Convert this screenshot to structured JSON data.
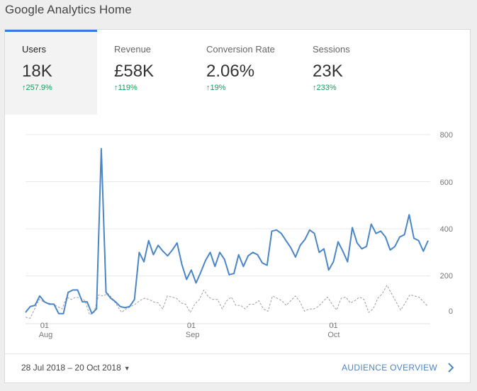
{
  "page": {
    "title": "Google Analytics Home"
  },
  "metrics": [
    {
      "label": "Users",
      "value": "18K",
      "delta": "257.9%",
      "arrow": "↑",
      "active": true
    },
    {
      "label": "Revenue",
      "value": "£58K",
      "delta": "119%",
      "arrow": "↑",
      "active": false
    },
    {
      "label": "Conversion Rate",
      "value": "2.06%",
      "delta": "19%",
      "arrow": "↑",
      "active": false
    },
    {
      "label": "Sessions",
      "value": "23K",
      "delta": "233%",
      "arrow": "↑",
      "active": false
    }
  ],
  "chart_data": {
    "type": "line",
    "title": "",
    "xlabel": "",
    "ylabel": "",
    "ylim": [
      0,
      800
    ],
    "y_ticks": [
      "0",
      "200",
      "400",
      "600",
      "800"
    ],
    "x_ticks": [
      {
        "day": "01",
        "month": "Aug",
        "index": 4
      },
      {
        "day": "01",
        "month": "Sep",
        "index": 35
      },
      {
        "day": "01",
        "month": "Oct",
        "index": 65
      }
    ],
    "grid": true,
    "colors": {
      "current": "#4a86c7",
      "previous": "#9e9e9e"
    },
    "series": [
      {
        "style": "solid",
        "values": [
          45,
          70,
          75,
          115,
          90,
          80,
          80,
          40,
          40,
          130,
          140,
          140,
          90,
          90,
          40,
          60,
          740,
          130,
          105,
          90,
          70,
          65,
          70,
          100,
          300,
          260,
          350,
          290,
          330,
          305,
          285,
          310,
          340,
          250,
          185,
          225,
          170,
          215,
          265,
          300,
          240,
          300,
          270,
          205,
          210,
          290,
          240,
          285,
          300,
          290,
          255,
          245,
          390,
          395,
          380,
          350,
          320,
          280,
          330,
          355,
          395,
          380,
          300,
          315,
          225,
          260,
          345,
          305,
          260,
          405,
          340,
          315,
          325,
          420,
          380,
          390,
          365,
          310,
          325,
          365,
          375,
          460,
          360,
          350,
          305,
          350
        ]
      },
      {
        "style": "dashed",
        "values": [
          25,
          20,
          60,
          100,
          90,
          85,
          80,
          70,
          60,
          110,
          100,
          110,
          105,
          95,
          35,
          45,
          120,
          115,
          125,
          105,
          75,
          45,
          60,
          70,
          80,
          95,
          105,
          100,
          90,
          85,
          60,
          115,
          110,
          105,
          85,
          80,
          45,
          80,
          100,
          140,
          110,
          100,
          100,
          60,
          95,
          110,
          75,
          75,
          60,
          80,
          80,
          95,
          60,
          50,
          115,
          105,
          95,
          75,
          95,
          115,
          90,
          50,
          60,
          60,
          70,
          90,
          110,
          80,
          55,
          105,
          110,
          85,
          95,
          110,
          100,
          45,
          60,
          105,
          125,
          160,
          125,
          90,
          55,
          85,
          120,
          115,
          110,
          90,
          70
        ]
      }
    ]
  },
  "footer": {
    "date_range": "28 Jul 2018 – 20 Oct 2018",
    "caret": "▼",
    "link_label": "AUDIENCE OVERVIEW",
    "link_icon": "chevron-right-icon"
  }
}
